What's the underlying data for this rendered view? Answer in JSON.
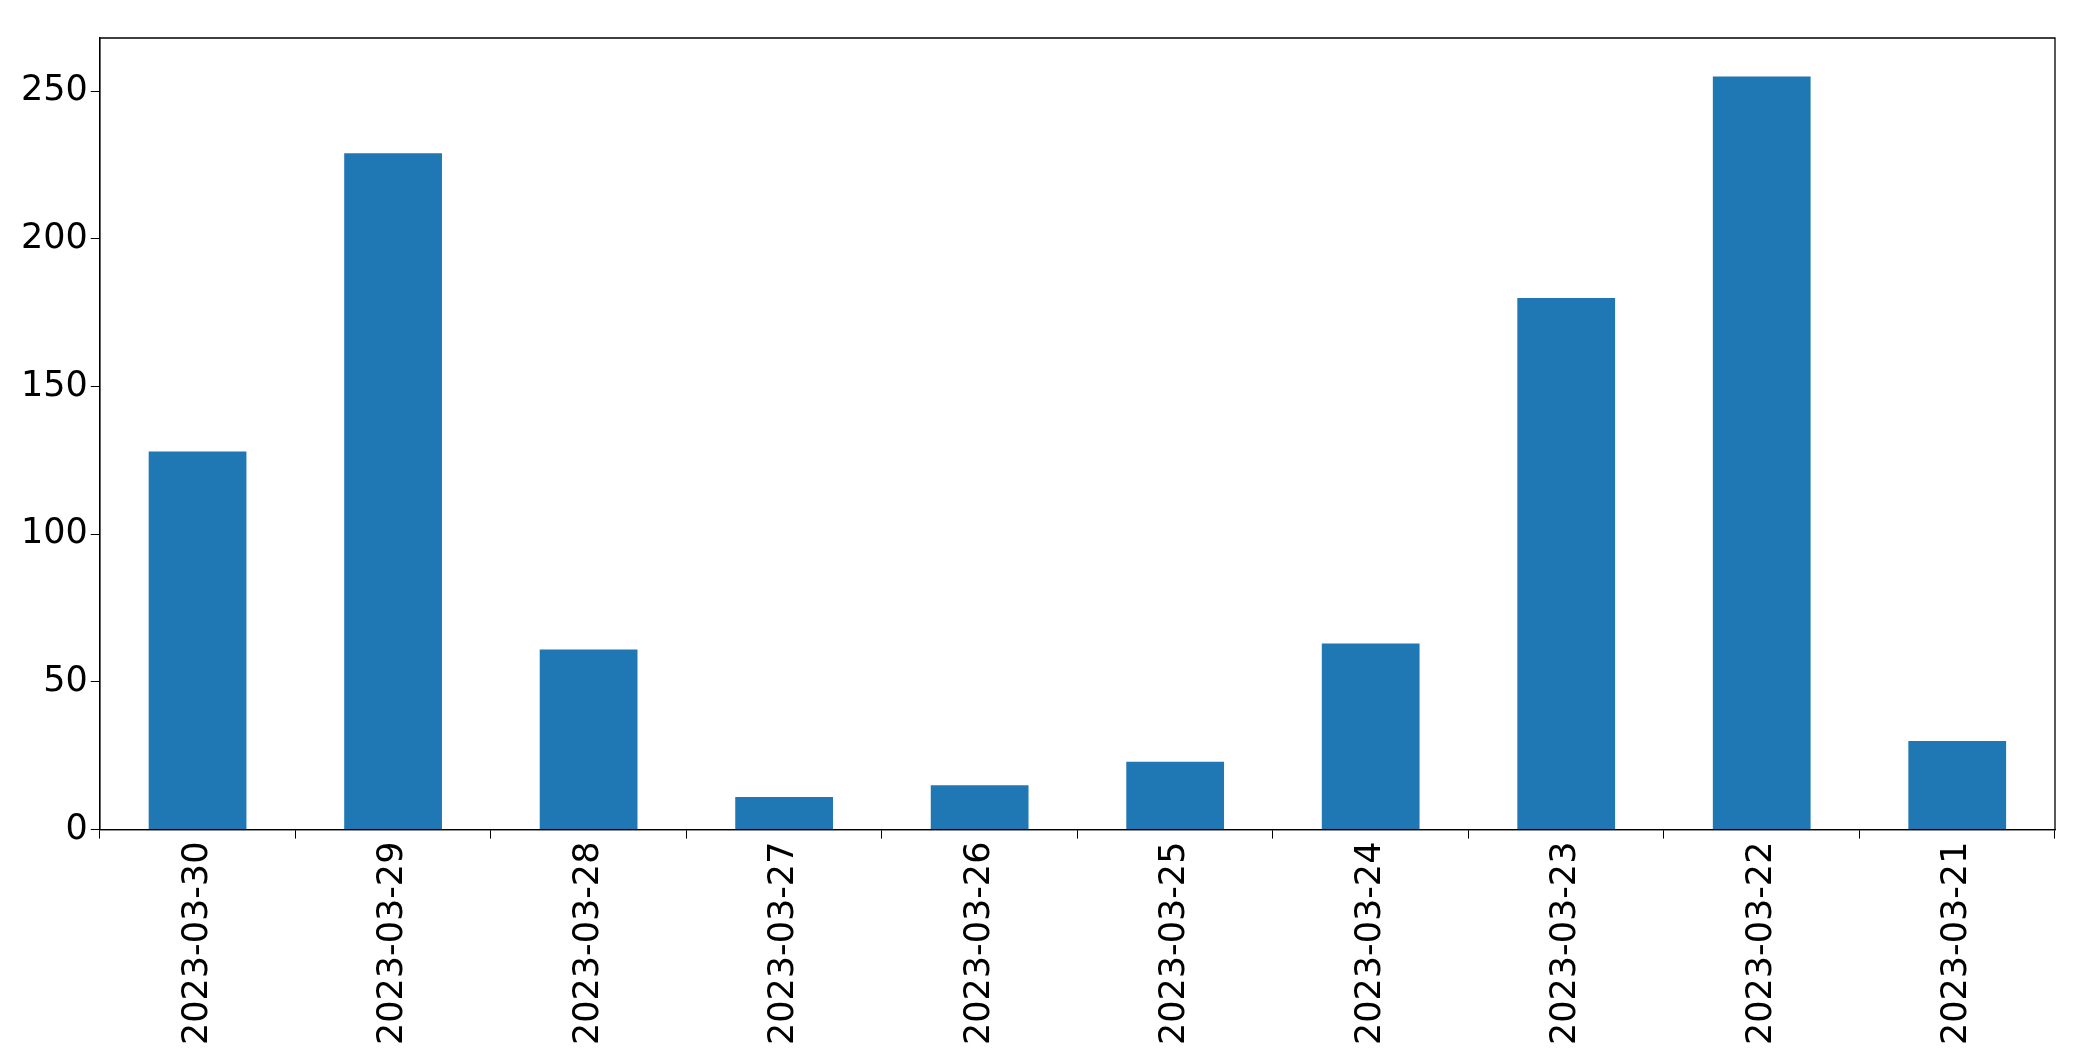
{
  "chart_data": {
    "type": "bar",
    "categories": [
      "2023-03-30",
      "2023-03-29",
      "2023-03-28",
      "2023-03-27",
      "2023-03-26",
      "2023-03-25",
      "2023-03-24",
      "2023-03-23",
      "2023-03-22",
      "2023-03-21"
    ],
    "values": [
      128,
      229,
      61,
      11,
      15,
      23,
      63,
      180,
      255,
      30
    ],
    "color": "#1f77b4",
    "ylim": [
      0,
      268
    ],
    "yticks": [
      0,
      50,
      100,
      150,
      200,
      250
    ],
    "grid": false,
    "legend": false
  }
}
